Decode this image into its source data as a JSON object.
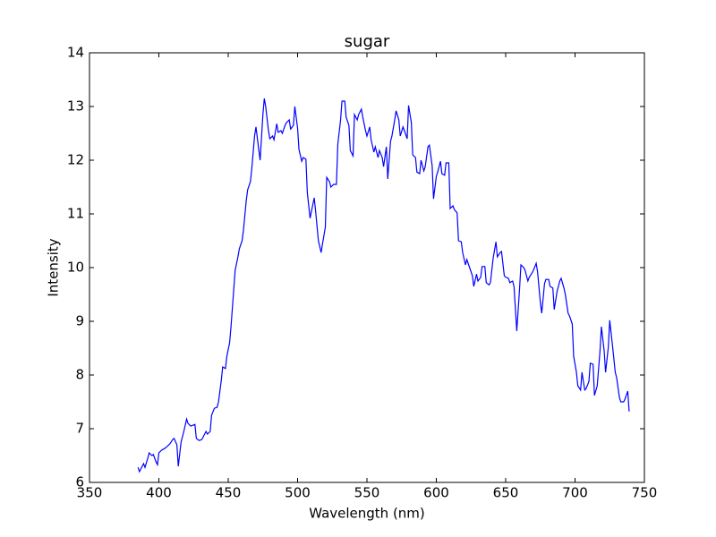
{
  "chart_data": {
    "type": "line",
    "title": "sugar",
    "xlabel": "Wavelength (nm)",
    "ylabel": "Intensity",
    "xlim": [
      350,
      750
    ],
    "xticks": [
      350,
      400,
      450,
      500,
      550,
      600,
      650,
      700,
      750
    ],
    "ylim": [
      6,
      14
    ],
    "yticks": [
      6,
      7,
      8,
      9,
      10,
      11,
      12,
      13,
      14
    ],
    "x": [
      385,
      386,
      388,
      389,
      390,
      392,
      393,
      395,
      396,
      398,
      399,
      400,
      402,
      404,
      406,
      408,
      410,
      411,
      413,
      414,
      416,
      418,
      420,
      421,
      423,
      426,
      427,
      429,
      431,
      432,
      434,
      435,
      437,
      438,
      440,
      442,
      443,
      445,
      446,
      448,
      449,
      451,
      452,
      454,
      455,
      457,
      458,
      460,
      461,
      463,
      464,
      466,
      467,
      469,
      470,
      472,
      473,
      475,
      476,
      477,
      479,
      480,
      482,
      483,
      485,
      486,
      488,
      489,
      491,
      492,
      494,
      495,
      497,
      498,
      500,
      501,
      503,
      504,
      506,
      507,
      509,
      510,
      512,
      513,
      515,
      517,
      518,
      520,
      521,
      523,
      524,
      526,
      528,
      529,
      531,
      532,
      534,
      535,
      537,
      538,
      540,
      541,
      543,
      544,
      546,
      547,
      549,
      550,
      552,
      553,
      555,
      556,
      558,
      559,
      561,
      562,
      564,
      565,
      567,
      568,
      570,
      571,
      573,
      574,
      576,
      577,
      579,
      580,
      582,
      583,
      585,
      586,
      588,
      589,
      591,
      592,
      594,
      595,
      597,
      598,
      600,
      601,
      603,
      604,
      606,
      607,
      609,
      610,
      612,
      613,
      615,
      616,
      618,
      619,
      621,
      622,
      624,
      626,
      627,
      629,
      630,
      632,
      633,
      635,
      636,
      638,
      639,
      641,
      643,
      644,
      646,
      647,
      649,
      650,
      652,
      653,
      655,
      656,
      658,
      660,
      661,
      663,
      664,
      666,
      667,
      669,
      670,
      672,
      673,
      675,
      676,
      678,
      679,
      681,
      682,
      684,
      685,
      687,
      689,
      690,
      692,
      693,
      695,
      696,
      698,
      699,
      701,
      702,
      704,
      705,
      707,
      708,
      710,
      711,
      713,
      714,
      716,
      718,
      719,
      721,
      722,
      724,
      725,
      727,
      729,
      730,
      732,
      733,
      735,
      736,
      738,
      739
    ],
    "series": [
      {
        "color": "#0000ff",
        "values": [
          6.28,
          6.2,
          6.3,
          6.35,
          6.28,
          6.45,
          6.55,
          6.5,
          6.52,
          6.38,
          6.33,
          6.55,
          6.6,
          6.63,
          6.67,
          6.72,
          6.8,
          6.82,
          6.7,
          6.3,
          6.75,
          6.95,
          7.18,
          7.1,
          7.05,
          7.08,
          6.82,
          6.78,
          6.8,
          6.85,
          6.95,
          6.9,
          6.95,
          7.25,
          7.38,
          7.4,
          7.5,
          7.9,
          8.15,
          8.12,
          8.35,
          8.6,
          8.9,
          9.6,
          9.95,
          10.2,
          10.35,
          10.5,
          10.7,
          11.25,
          11.45,
          11.6,
          11.85,
          12.45,
          12.62,
          12.2,
          12.0,
          12.85,
          13.15,
          13.0,
          12.55,
          12.4,
          12.45,
          12.38,
          12.68,
          12.52,
          12.55,
          12.5,
          12.65,
          12.7,
          12.75,
          12.58,
          12.65,
          13.0,
          12.6,
          12.2,
          11.98,
          12.05,
          12.02,
          11.4,
          10.92,
          11.05,
          11.3,
          11.05,
          10.5,
          10.28,
          10.45,
          10.75,
          11.68,
          11.6,
          11.5,
          11.55,
          11.55,
          12.3,
          12.75,
          13.1,
          13.1,
          12.8,
          12.65,
          12.18,
          12.08,
          12.85,
          12.75,
          12.85,
          12.95,
          12.8,
          12.55,
          12.45,
          12.62,
          12.38,
          12.15,
          12.25,
          12.05,
          12.18,
          12.05,
          11.88,
          12.25,
          11.65,
          12.35,
          12.45,
          12.75,
          12.92,
          12.75,
          12.45,
          12.62,
          12.55,
          12.4,
          13.02,
          12.7,
          12.1,
          12.05,
          11.78,
          11.75,
          12.0,
          11.8,
          11.88,
          12.25,
          12.28,
          11.9,
          11.28,
          11.7,
          11.78,
          11.98,
          11.75,
          11.72,
          11.95,
          11.95,
          11.1,
          11.15,
          11.08,
          11.02,
          10.5,
          10.48,
          10.28,
          10.05,
          10.15,
          10.0,
          9.85,
          9.65,
          9.88,
          9.75,
          9.82,
          10.02,
          10.02,
          9.72,
          9.68,
          9.72,
          10.18,
          10.48,
          10.2,
          10.28,
          10.3,
          9.85,
          9.82,
          9.8,
          9.72,
          9.75,
          9.65,
          8.82,
          9.6,
          10.05,
          10.0,
          9.95,
          9.75,
          9.82,
          9.9,
          9.95,
          10.08,
          9.92,
          9.35,
          9.15,
          9.7,
          9.78,
          9.78,
          9.65,
          9.62,
          9.22,
          9.55,
          9.75,
          9.8,
          9.62,
          9.5,
          9.15,
          9.1,
          8.95,
          8.35,
          8.05,
          7.8,
          7.72,
          8.05,
          7.72,
          7.75,
          7.88,
          8.22,
          8.2,
          7.62,
          7.8,
          8.45,
          8.9,
          8.45,
          8.05,
          8.52,
          9.02,
          8.55,
          8.05,
          7.95,
          7.58,
          7.5,
          7.5,
          7.55,
          7.7,
          7.32
        ]
      }
    ]
  }
}
